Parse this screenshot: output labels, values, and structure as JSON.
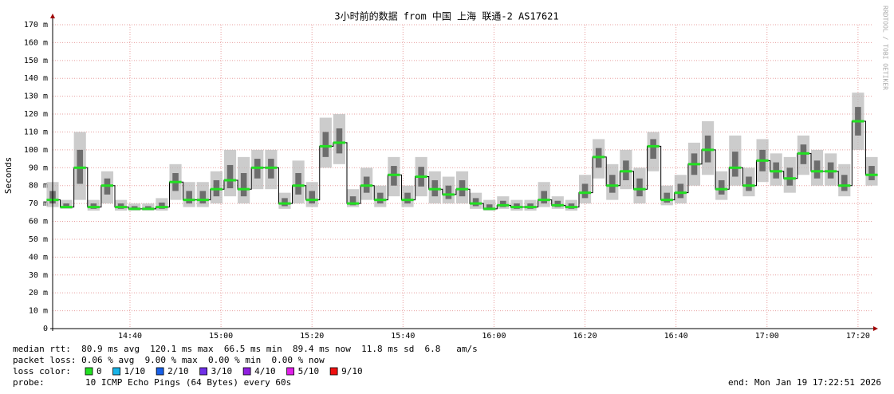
{
  "chart_data": {
    "type": "smokeping",
    "title": "3小时前的数据 from 中国 上海 联通-2 AS17621",
    "y_label": "Seconds",
    "watermark": "RRDTOOL / TOBI OETIKER",
    "x": [
      "14:23",
      "14:26",
      "14:29",
      "14:32",
      "14:35",
      "14:38",
      "14:41",
      "14:44",
      "14:47",
      "14:50",
      "14:53",
      "14:56",
      "14:59",
      "15:02",
      "15:05",
      "15:08",
      "15:11",
      "15:14",
      "15:17",
      "15:20",
      "15:23",
      "15:26",
      "15:29",
      "15:32",
      "15:35",
      "15:38",
      "15:41",
      "15:44",
      "15:47",
      "15:50",
      "15:53",
      "15:56",
      "15:59",
      "16:02",
      "16:05",
      "16:08",
      "16:11",
      "16:14",
      "16:17",
      "16:20",
      "16:23",
      "16:26",
      "16:29",
      "16:32",
      "16:35",
      "16:38",
      "16:41",
      "16:44",
      "16:47",
      "16:50",
      "16:53",
      "16:56",
      "16:59",
      "17:02",
      "17:05",
      "17:08",
      "17:11",
      "17:14",
      "17:17",
      "17:20",
      "17:23"
    ],
    "series": [
      {
        "color": "#22e022",
        "values": [
          72,
          68,
          90,
          68,
          80,
          68,
          67,
          67,
          68,
          82,
          72,
          72,
          78,
          83,
          78,
          90,
          90,
          70,
          80,
          72,
          102,
          104,
          70,
          80,
          72,
          86,
          72,
          85,
          78,
          75,
          78,
          70,
          67,
          69,
          68,
          68,
          72,
          69,
          68,
          76,
          96,
          80,
          88,
          78,
          102,
          72,
          76,
          92,
          100,
          78,
          90,
          80,
          94,
          88,
          84,
          98,
          88,
          88,
          80,
          116,
          86
        ]
      }
    ],
    "smoke": {
      "low": [
        68,
        67,
        72,
        66,
        70,
        66,
        66,
        66,
        66,
        72,
        68,
        68,
        70,
        74,
        70,
        78,
        78,
        67,
        70,
        68,
        90,
        92,
        68,
        72,
        68,
        74,
        68,
        74,
        70,
        70,
        70,
        67,
        66,
        67,
        66,
        66,
        68,
        67,
        66,
        70,
        84,
        72,
        78,
        70,
        88,
        69,
        70,
        80,
        86,
        72,
        80,
        74,
        82,
        80,
        76,
        86,
        80,
        80,
        74,
        100,
        80
      ],
      "high": [
        82,
        72,
        110,
        72,
        88,
        72,
        70,
        70,
        73,
        92,
        82,
        82,
        88,
        100,
        96,
        100,
        100,
        76,
        94,
        82,
        118,
        120,
        78,
        90,
        80,
        96,
        80,
        96,
        88,
        85,
        88,
        76,
        72,
        74,
        72,
        72,
        82,
        74,
        72,
        86,
        106,
        92,
        100,
        90,
        110,
        80,
        86,
        104,
        116,
        88,
        108,
        90,
        106,
        98,
        96,
        108,
        100,
        98,
        92,
        132,
        96
      ]
    },
    "xlim": [
      "14:23",
      "17:23"
    ],
    "xticks": [
      "14:40",
      "15:00",
      "15:20",
      "15:40",
      "16:00",
      "16:20",
      "16:40",
      "17:00",
      "17:20"
    ],
    "ylim": [
      0,
      170
    ],
    "yticks": [
      0,
      {
        "value": 10,
        "label": "10 m"
      },
      {
        "value": 20,
        "label": "20 m"
      },
      {
        "value": 30,
        "label": "30 m"
      },
      {
        "value": 40,
        "label": "40 m"
      },
      {
        "value": 50,
        "label": "50 m"
      },
      {
        "value": 60,
        "label": "60 m"
      },
      {
        "value": 70,
        "label": "70 m"
      },
      {
        "value": 80,
        "label": "80 m"
      },
      {
        "value": 90,
        "label": "90 m"
      },
      {
        "value": 100,
        "label": "100 m"
      },
      {
        "value": 110,
        "label": "110 m"
      },
      {
        "value": 120,
        "label": "120 m"
      },
      {
        "value": 130,
        "label": "130 m"
      },
      {
        "value": 140,
        "label": "140 m"
      },
      {
        "value": 150,
        "label": "150 m"
      },
      {
        "value": 160,
        "label": "160 m"
      },
      {
        "value": 170,
        "label": "170 m"
      }
    ],
    "grid": true,
    "stats": [
      "median rtt:  80.9 ms avg  120.1 ms max  66.5 ms min  89.4 ms now  11.8 ms sd  6.8   am/s",
      "packet loss: 0.06 % avg  9.00 % max  0.00 % min  0.00 % now"
    ],
    "loss_title": "loss color:",
    "loss_colors": [
      {
        "color": "#22e022",
        "label": "0"
      },
      {
        "color": "#18b4e8",
        "label": "1/10"
      },
      {
        "color": "#1860e8",
        "label": "2/10"
      },
      {
        "color": "#7030e8",
        "label": "3/10"
      },
      {
        "color": "#9020e0",
        "label": "4/10"
      },
      {
        "color": "#e020e8",
        "label": "5/10"
      },
      {
        "color": "#f01010",
        "label": "9/10"
      }
    ],
    "probe_label": "probe:",
    "probe": "10 ICMP Echo Pings (64 Bytes) every 60s",
    "end": "end: Mon Jan 19 17:22:51 2026"
  }
}
